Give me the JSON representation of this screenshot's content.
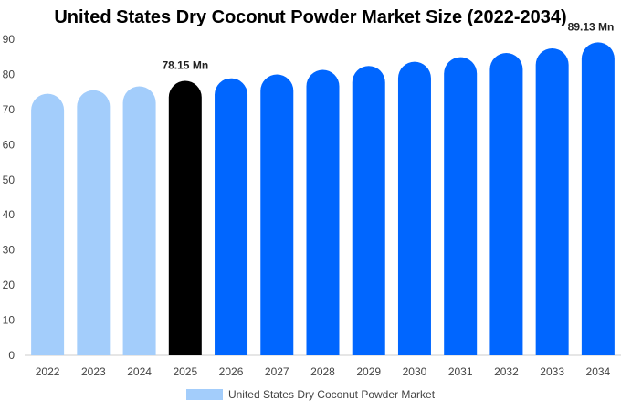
{
  "chart_data": {
    "type": "bar",
    "title": "United States Dry Coconut Powder Market Size (2022-2034)",
    "xlabel": "",
    "ylabel": "",
    "categories": [
      "2022",
      "2023",
      "2024",
      "2025",
      "2026",
      "2027",
      "2028",
      "2029",
      "2030",
      "2031",
      "2032",
      "2033",
      "2034"
    ],
    "series": [
      {
        "name": "United States Dry Coconut Powder Market",
        "values": [
          74.5,
          75.5,
          76.6,
          78.15,
          78.9,
          80.0,
          81.3,
          82.4,
          83.6,
          84.9,
          86.1,
          87.4,
          89.13
        ]
      }
    ],
    "data_labels": [
      {
        "category": "2025",
        "text": "78.15 Mn"
      },
      {
        "category": "2034",
        "text": "89.13 Mn"
      }
    ],
    "ylim": [
      0,
      90
    ],
    "yticks": [
      0,
      10,
      20,
      30,
      40,
      50,
      60,
      70,
      80,
      90
    ],
    "grid": false,
    "legend_position": "bottom",
    "colors": {
      "historical": "#a3cdfb",
      "current": "#000000",
      "forecast": "#0066ff"
    },
    "bar_groups": {
      "historical": [
        "2022",
        "2023",
        "2024"
      ],
      "current": [
        "2025"
      ],
      "forecast": [
        "2026",
        "2027",
        "2028",
        "2029",
        "2030",
        "2031",
        "2032",
        "2033",
        "2034"
      ]
    }
  }
}
